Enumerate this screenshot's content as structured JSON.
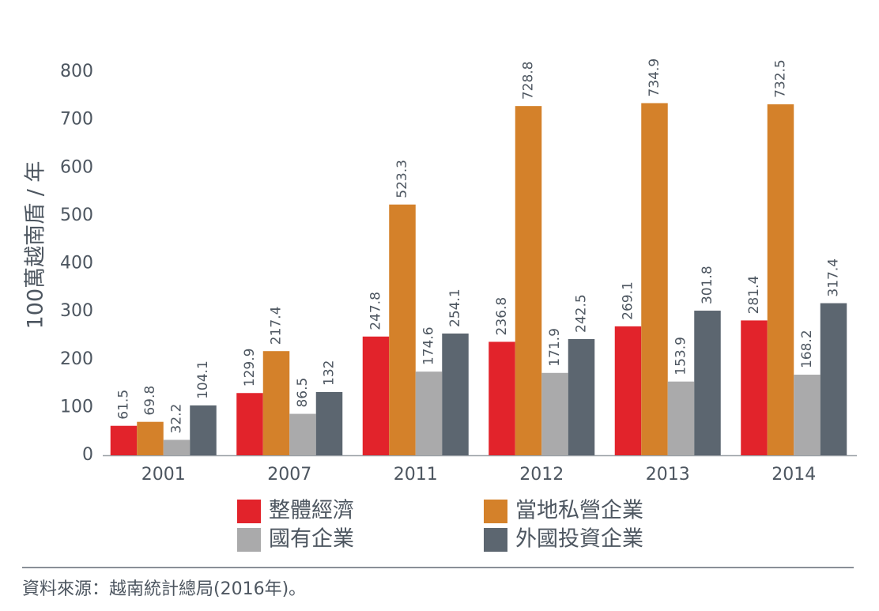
{
  "chart_data": {
    "type": "bar",
    "y_axis_label": "100萬越南盾 / 年",
    "source": "資料來源：越南統計總局(2016年)。",
    "categories": [
      "2001",
      "2007",
      "2011",
      "2012",
      "2013",
      "2014"
    ],
    "series": [
      {
        "name": "整體經濟",
        "color": "#e2232b",
        "values": [
          61.5,
          129.9,
          247.8,
          236.8,
          269.1,
          281.4
        ]
      },
      {
        "name": "當地私營企業",
        "color": "#d4812a",
        "values": [
          69.8,
          217.4,
          523.3,
          728.8,
          734.9,
          732.5
        ]
      },
      {
        "name": "國有企業",
        "color": "#aaaaab",
        "values": [
          32.2,
          86.5,
          174.6,
          171.9,
          153.9,
          168.2
        ]
      },
      {
        "name": "外國投資企業",
        "color": "#5c6670",
        "values": [
          104.1,
          132,
          254.1,
          242.5,
          301.8,
          317.4
        ]
      }
    ],
    "ylim": [
      0,
      800
    ],
    "yticks": [
      0,
      100,
      200,
      300,
      400,
      500,
      600,
      700,
      800
    ],
    "grid": false
  }
}
